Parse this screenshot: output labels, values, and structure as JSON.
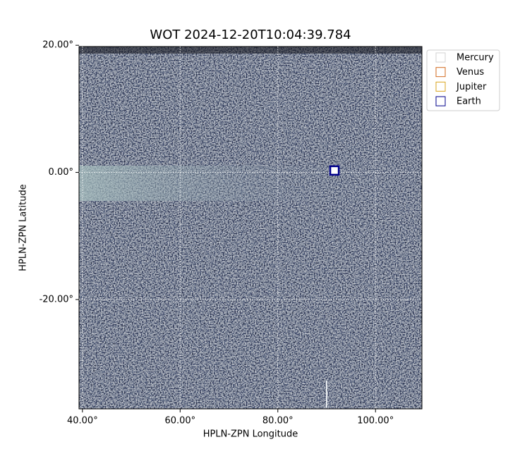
{
  "chart_data": {
    "type": "image",
    "title": "WOT 2024-12-20T10:04:39.784",
    "xlabel": "HPLN-ZPN Longitude",
    "ylabel": "HPLN-ZPN Latitude",
    "xlim": [
      39.3,
      109.5
    ],
    "ylim": [
      -37.2,
      19.8
    ],
    "xticks": [
      {
        "value": 40,
        "label": "40.00°"
      },
      {
        "value": 60,
        "label": "60.00°"
      },
      {
        "value": 80,
        "label": "80.00°"
      },
      {
        "value": 100,
        "label": "100.00°"
      }
    ],
    "yticks": [
      {
        "value": 20,
        "label": "20.00°"
      },
      {
        "value": 0,
        "label": "0.00°"
      },
      {
        "value": -20,
        "label": "-20.00°"
      }
    ],
    "grid": true,
    "legend": "upper right outside",
    "series": [
      {
        "name": "Mercury",
        "color": "#d3d3d3"
      },
      {
        "name": "Venus",
        "color": "#d2691e"
      },
      {
        "name": "Jupiter",
        "color": "#daa520"
      },
      {
        "name": "Earth",
        "color": "#00008b",
        "x": [
          91.6
        ],
        "y": [
          0.3
        ]
      }
    ]
  }
}
